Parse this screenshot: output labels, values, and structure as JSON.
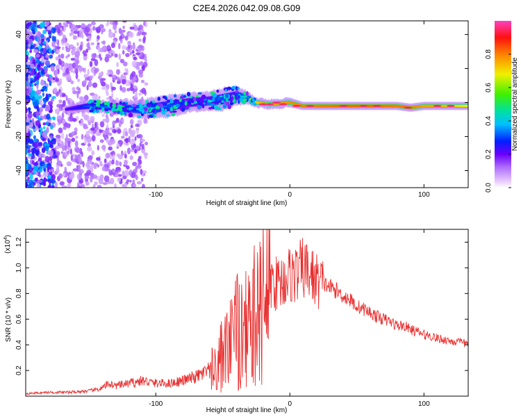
{
  "title": "C2E4.2026.042.09.08.G09",
  "chart_data": [
    {
      "type": "heatmap",
      "xlabel": "Height of straight line (km)",
      "ylabel": "Frequency (Hz)",
      "xlim": [
        -197,
        133
      ],
      "ylim": [
        -50,
        48
      ],
      "xticks": [
        -100,
        0,
        100
      ],
      "xtick_labels": [
        "-100",
        "0",
        "100"
      ],
      "yticks": [
        -40,
        -20,
        0,
        20,
        40
      ],
      "ytick_labels": [
        "-40",
        "-20",
        "0",
        "20",
        "40"
      ],
      "colorbar": {
        "label": "Normalized spectral amplitude",
        "range": [
          0,
          1
        ],
        "ticks": [
          0.0,
          0.2,
          0.4,
          0.6,
          0.8
        ],
        "tick_labels": [
          "0.0",
          "0.2",
          "0.4",
          "0.6",
          "0.8"
        ]
      },
      "ridge": {
        "x": [
          -167,
          -150,
          -130,
          -110,
          -90,
          -75,
          -60,
          -50,
          -40,
          -32,
          -25,
          -15,
          0,
          10,
          20,
          40,
          60,
          80,
          90,
          100,
          110,
          120,
          133
        ],
        "frequency": [
          -4,
          -2,
          -3,
          -4,
          -2,
          0,
          1,
          2,
          4,
          3,
          0,
          -1,
          0,
          -2,
          -2,
          -2,
          -2,
          -2,
          -3,
          -2,
          -2,
          -2,
          -2
        ],
        "amplitude": [
          0.3,
          0.45,
          0.5,
          0.55,
          0.45,
          0.4,
          0.4,
          0.45,
          0.4,
          0.7,
          0.85,
          0.9,
          0.92,
          0.95,
          0.95,
          0.97,
          0.97,
          0.95,
          0.95,
          0.9,
          0.9,
          0.85,
          0.8
        ],
        "spread_hz": [
          1.5,
          3,
          3,
          5,
          6,
          5,
          5,
          6,
          5,
          3,
          2,
          2,
          2,
          1.5,
          1.5,
          1.5,
          1.5,
          1.5,
          1.5,
          1.5,
          1.5,
          1.5,
          1.5
        ]
      }
    },
    {
      "type": "line",
      "xlabel": "Height of straight line (km)",
      "ylabel": "SNR (10 * v/v)",
      "y_multiplier": "(x10",
      "y_multiplier_exp": "4",
      "y_multiplier_close": ")",
      "xlim": [
        -197,
        133
      ],
      "ylim": [
        0,
        1.3
      ],
      "xticks": [
        -100,
        0,
        100
      ],
      "xtick_labels": [
        "-100",
        "0",
        "100"
      ],
      "yticks": [
        0.2,
        0.4,
        0.6,
        0.8,
        1.0,
        1.2
      ],
      "ytick_labels": [
        "0.2",
        "0.4",
        "0.6",
        "0.8",
        "1.0",
        "1.2"
      ],
      "color": "#e83030",
      "series": [
        {
          "name": "SNR",
          "x": [
            -197,
            -180,
            -165,
            -150,
            -140,
            -135,
            -130,
            -120,
            -110,
            -100,
            -90,
            -80,
            -70,
            -60,
            -55,
            -50,
            -45,
            -40,
            -35,
            -30,
            -25,
            -20,
            -15,
            -10,
            -5,
            0,
            5,
            10,
            15,
            20,
            25,
            30,
            35,
            40,
            45,
            50,
            55,
            60,
            65,
            70,
            75,
            80,
            85,
            90,
            95,
            100,
            105,
            110,
            115,
            120,
            125,
            133
          ],
          "y": [
            0.02,
            0.03,
            0.03,
            0.04,
            0.06,
            0.1,
            0.08,
            0.1,
            0.12,
            0.1,
            0.1,
            0.12,
            0.15,
            0.2,
            0.3,
            0.4,
            0.5,
            0.6,
            0.7,
            0.7,
            0.75,
            0.85,
            0.9,
            0.88,
            0.9,
            0.95,
            0.95,
            1.0,
            0.95,
            0.9,
            0.88,
            0.85,
            0.82,
            0.78,
            0.75,
            0.7,
            0.68,
            0.65,
            0.62,
            0.6,
            0.58,
            0.55,
            0.55,
            0.52,
            0.5,
            0.48,
            0.47,
            0.45,
            0.44,
            0.43,
            0.42,
            0.41
          ]
        }
      ]
    }
  ]
}
